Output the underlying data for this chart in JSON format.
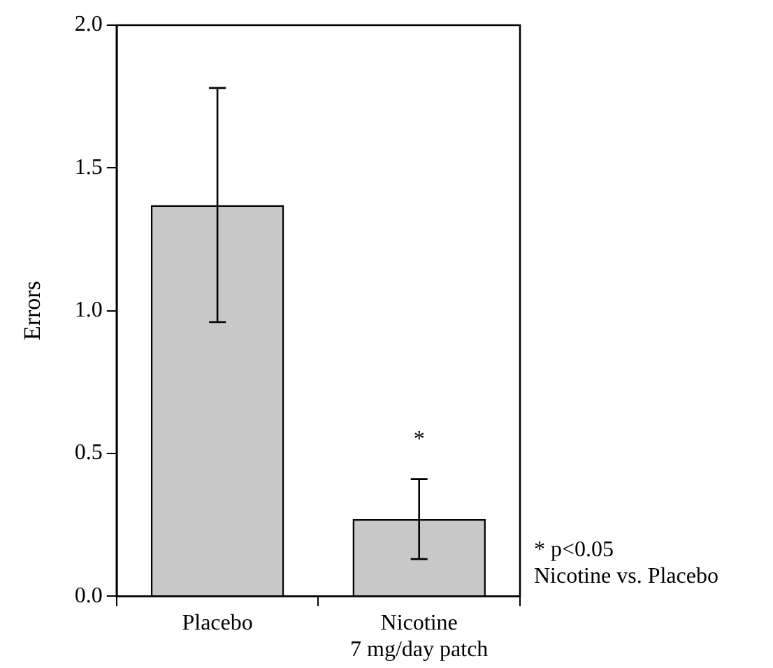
{
  "chart_data": {
    "type": "bar",
    "ylabel": "Errors",
    "categories": [
      "Placebo",
      "Nicotine\n7 mg/day patch"
    ],
    "values": [
      1.37,
      0.27
    ],
    "color": "#c8c8c8",
    "errors": [
      [
        0.96,
        1.78
      ],
      [
        0.13,
        0.41
      ]
    ],
    "ylim": [
      0,
      2.0
    ],
    "yticks": [
      {
        "value": 0,
        "label": "0.0"
      },
      {
        "value": 0.5,
        "label": "0.5"
      },
      {
        "value": 1,
        "label": "1.0"
      },
      {
        "value": 1.5,
        "label": "1.5"
      },
      {
        "value": 2,
        "label": "2.0"
      }
    ],
    "grid": false,
    "legend": false,
    "annotations": [
      "*",
      "* p<0.05\nNicotine vs. Placebo"
    ]
  }
}
